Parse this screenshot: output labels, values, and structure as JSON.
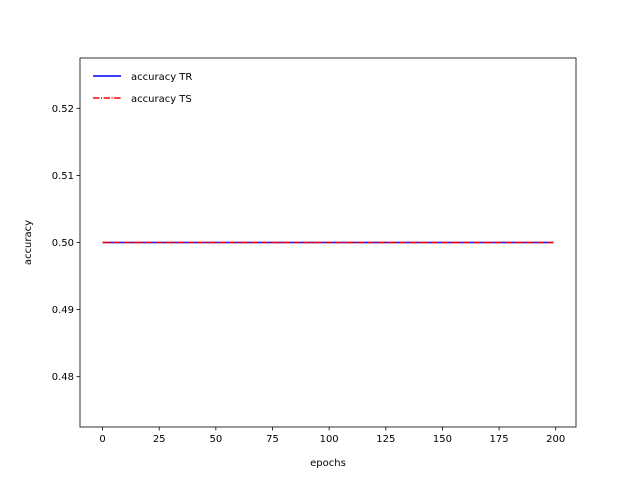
{
  "chart_data": {
    "type": "line",
    "title": "",
    "xlabel": "epochs",
    "ylabel": "accuracy",
    "xlim": [
      -9.95,
      208.95
    ],
    "ylim": [
      0.4725,
      0.5275
    ],
    "xticks": [
      0,
      25,
      50,
      75,
      100,
      125,
      150,
      175,
      200
    ],
    "yticks": [
      0.48,
      0.49,
      0.5,
      0.51,
      0.52
    ],
    "ytick_labels": [
      "0.48",
      "0.49",
      "0.50",
      "0.51",
      "0.52"
    ],
    "grid": false,
    "legend_position": "top-left",
    "x_range": [
      0,
      199
    ],
    "series": [
      {
        "name": "accuracy TR",
        "value": 0.5,
        "color": "#0000ff",
        "linestyle": "solid"
      },
      {
        "name": "accuracy TS",
        "value": 0.5,
        "color": "#ff0000",
        "linestyle": "dashdot"
      }
    ]
  }
}
